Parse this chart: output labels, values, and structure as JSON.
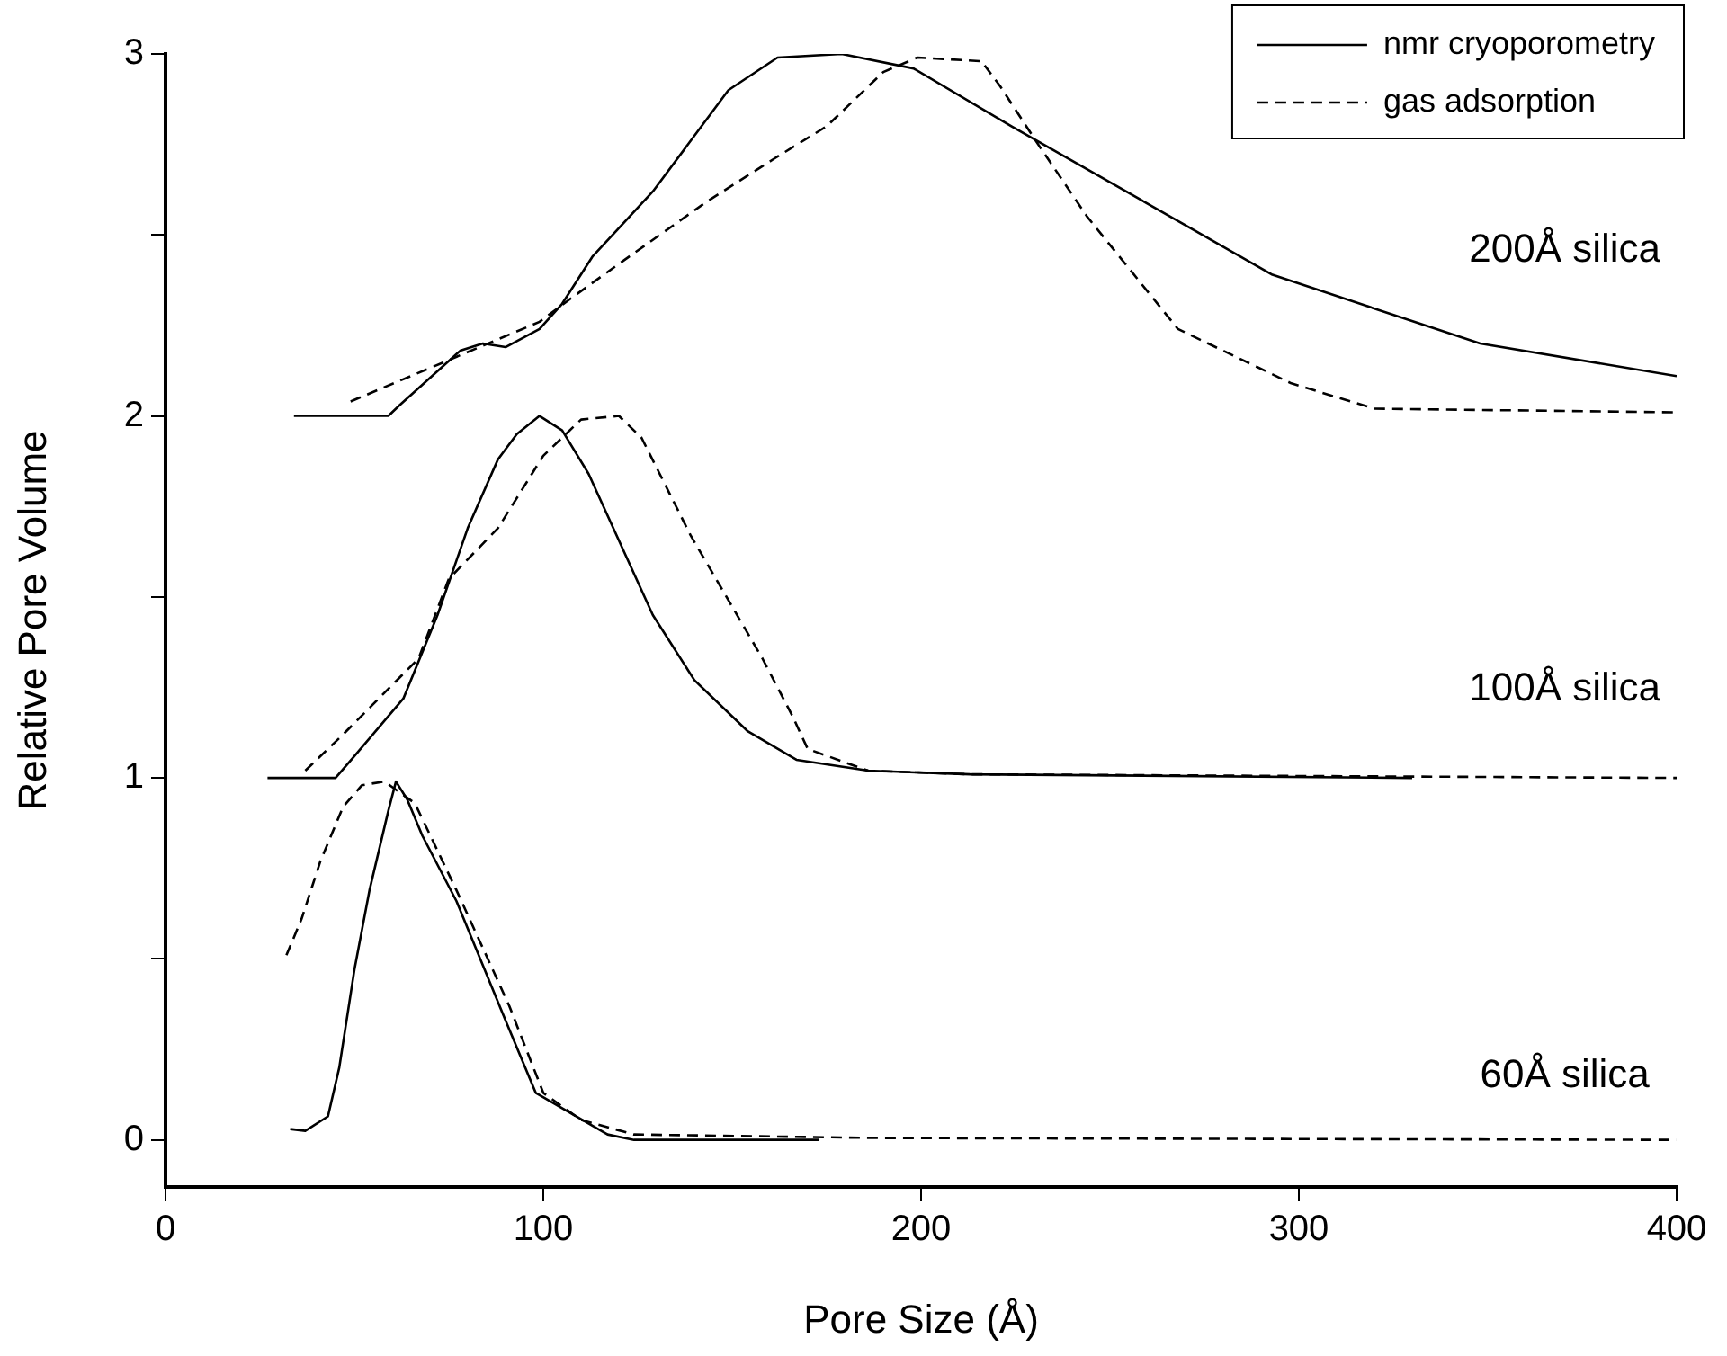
{
  "chart_data": {
    "type": "line",
    "xlabel": "Pore Size (Å)",
    "ylabel": "Relative Pore Volume",
    "xlim": [
      0,
      400
    ],
    "xticks": [
      0,
      100,
      200,
      300,
      400
    ],
    "ylim": [
      -0.13,
      3
    ],
    "yticks": [
      0,
      {
        "value": 0.5,
        "label": null
      },
      1,
      {
        "value": 1.5,
        "label": null
      },
      2,
      {
        "value": 2.5,
        "label": null
      },
      3
    ],
    "grid": false,
    "legend": "top right",
    "marker": "none",
    "series": [
      {
        "name": "nmr cryoporometry",
        "color": "#000000",
        "line_style": "solid",
        "x": [
          34,
          59,
          62,
          78,
          84,
          90,
          99,
          105,
          113,
          129,
          149,
          162,
          179,
          198,
          224,
          293,
          348,
          400
        ],
        "values": [
          2.0,
          2.0,
          2.03,
          2.18,
          2.2,
          2.19,
          2.24,
          2.31,
          2.44,
          2.62,
          2.9,
          2.99,
          3.0,
          2.96,
          2.8,
          2.39,
          2.2,
          2.11
        ]
      },
      {
        "name": "gas adsorption",
        "color": "#000000",
        "line_style": "dashed",
        "x": [
          49,
          74,
          99,
          108,
          120,
          143,
          161,
          175,
          181,
          190,
          199,
          216,
          221,
          231,
          244,
          268,
          298,
          320,
          400
        ],
        "values": [
          2.04,
          2.15,
          2.26,
          2.33,
          2.42,
          2.59,
          2.71,
          2.8,
          2.86,
          2.95,
          2.99,
          2.98,
          2.91,
          2.75,
          2.55,
          2.24,
          2.09,
          2.02,
          2.01
        ]
      },
      {
        "color": "#000000",
        "line_style": "solid",
        "x": [
          27,
          45,
          50,
          63,
          72,
          80,
          88,
          93,
          99,
          105,
          112,
          129,
          140,
          154,
          167,
          186,
          213,
          330
        ],
        "values": [
          1.0,
          1.0,
          1.06,
          1.22,
          1.45,
          1.69,
          1.88,
          1.95,
          2.0,
          1.96,
          1.84,
          1.45,
          1.27,
          1.13,
          1.05,
          1.02,
          1.01,
          1.0
        ]
      },
      {
        "color": "#000000",
        "line_style": "dashed",
        "x": [
          37,
          47,
          67,
          75,
          88,
          100,
          110,
          120,
          126,
          139,
          158,
          166,
          170,
          186,
          213,
          400
        ],
        "values": [
          1.02,
          1.12,
          1.33,
          1.55,
          1.69,
          1.89,
          1.99,
          2.0,
          1.94,
          1.67,
          1.33,
          1.17,
          1.08,
          1.02,
          1.01,
          1.0
        ]
      },
      {
        "color": "#000000",
        "line_style": "solid",
        "x": [
          33,
          37,
          43,
          46,
          50,
          54,
          59,
          61,
          64,
          68,
          77,
          90,
          98,
          117,
          124,
          173
        ],
        "values": [
          0.03,
          0.025,
          0.065,
          0.2,
          0.47,
          0.69,
          0.91,
          0.99,
          0.94,
          0.84,
          0.66,
          0.33,
          0.13,
          0.015,
          0.0,
          0.0
        ]
      },
      {
        "color": "#000000",
        "line_style": "dashed",
        "x": [
          32,
          36,
          41,
          47,
          52,
          58,
          66,
          77,
          91,
          100,
          110,
          124,
          190,
          400
        ],
        "values": [
          0.51,
          0.61,
          0.77,
          0.92,
          0.98,
          0.99,
          0.93,
          0.69,
          0.37,
          0.13,
          0.055,
          0.015,
          0.005,
          0.0
        ]
      }
    ],
    "annotations": [
      "200Å silica",
      "100Å silica",
      "60Å silica"
    ]
  }
}
